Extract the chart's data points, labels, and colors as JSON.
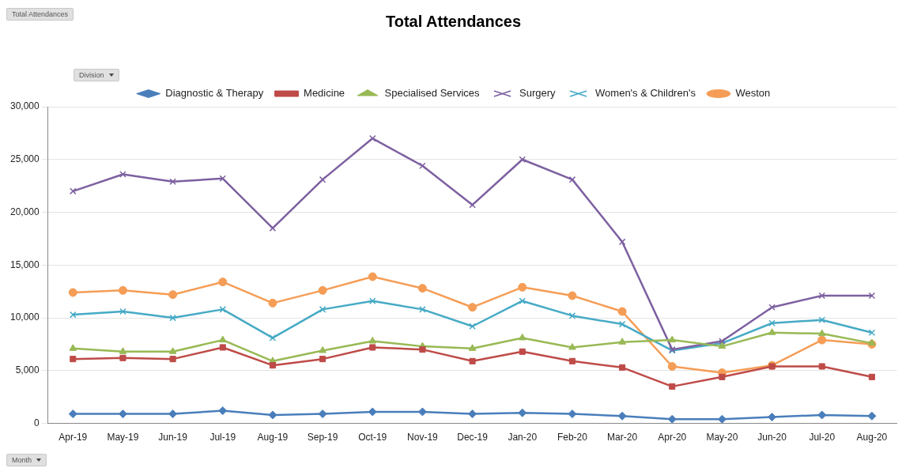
{
  "chart_data": {
    "type": "line",
    "title": "Total Attendances",
    "annotations": [
      "Total Attendances",
      "Division",
      "Month"
    ],
    "categories": [
      "Apr-19",
      "May-19",
      "Jun-19",
      "Jul-19",
      "Aug-19",
      "Sep-19",
      "Oct-19",
      "Nov-19",
      "Dec-19",
      "Jan-20",
      "Feb-20",
      "Mar-20",
      "Apr-20",
      "May-20",
      "Jun-20",
      "Jul-20",
      "Aug-20"
    ],
    "series": [
      {
        "name": "Diagnostic & Therapy",
        "color": "#4a7ebb",
        "marker": "diamond",
        "values": [
          900,
          900,
          900,
          1200,
          800,
          900,
          1100,
          1100,
          900,
          1000,
          900,
          700,
          400,
          400,
          600,
          800,
          700
        ]
      },
      {
        "name": "Medicine",
        "color": "#be4b48",
        "marker": "square",
        "values": [
          6100,
          6200,
          6100,
          7200,
          5500,
          6100,
          7200,
          7000,
          5900,
          6800,
          5900,
          5300,
          3500,
          4400,
          5400,
          5400,
          4400
        ]
      },
      {
        "name": "Specialised Services",
        "color": "#98b954",
        "marker": "triangle",
        "values": [
          7100,
          6800,
          6800,
          7900,
          5900,
          6900,
          7800,
          7300,
          7100,
          8100,
          7200,
          7700,
          7900,
          7300,
          8600,
          8500,
          7600
        ]
      },
      {
        "name": "Surgery",
        "color": "#7d60a0",
        "marker": "cross",
        "values": [
          22000,
          23600,
          22900,
          23200,
          18500,
          23100,
          27000,
          24400,
          20700,
          25000,
          23100,
          17200,
          7000,
          7800,
          11000,
          12100,
          12100
        ]
      },
      {
        "name": "Women's & Children's",
        "color": "#46aac5",
        "marker": "cross",
        "values": [
          10300,
          10600,
          10000,
          10800,
          8100,
          10800,
          11600,
          10800,
          9200,
          11600,
          10200,
          9400,
          6900,
          7600,
          9500,
          9800,
          8600
        ]
      },
      {
        "name": "Weston",
        "color": "#f59d56",
        "marker": "circle",
        "values": [
          12400,
          12600,
          12200,
          13400,
          11400,
          12600,
          13900,
          12800,
          11000,
          12900,
          12100,
          10600,
          5400,
          4800,
          5500,
          7900,
          7500
        ]
      }
    ],
    "ylim": [
      0,
      30000
    ],
    "yticks": [
      0,
      {
        "value": 5000,
        "label": "5,000"
      },
      {
        "value": 10000,
        "label": "10,000"
      },
      {
        "value": 15000,
        "label": "15,000"
      },
      {
        "value": 20000,
        "label": "20,000"
      },
      {
        "value": 25000,
        "label": "25,000"
      },
      {
        "value": 30000,
        "label": "30,000"
      }
    ],
    "grid": "y",
    "legend": "top",
    "line_style": "solid"
  }
}
